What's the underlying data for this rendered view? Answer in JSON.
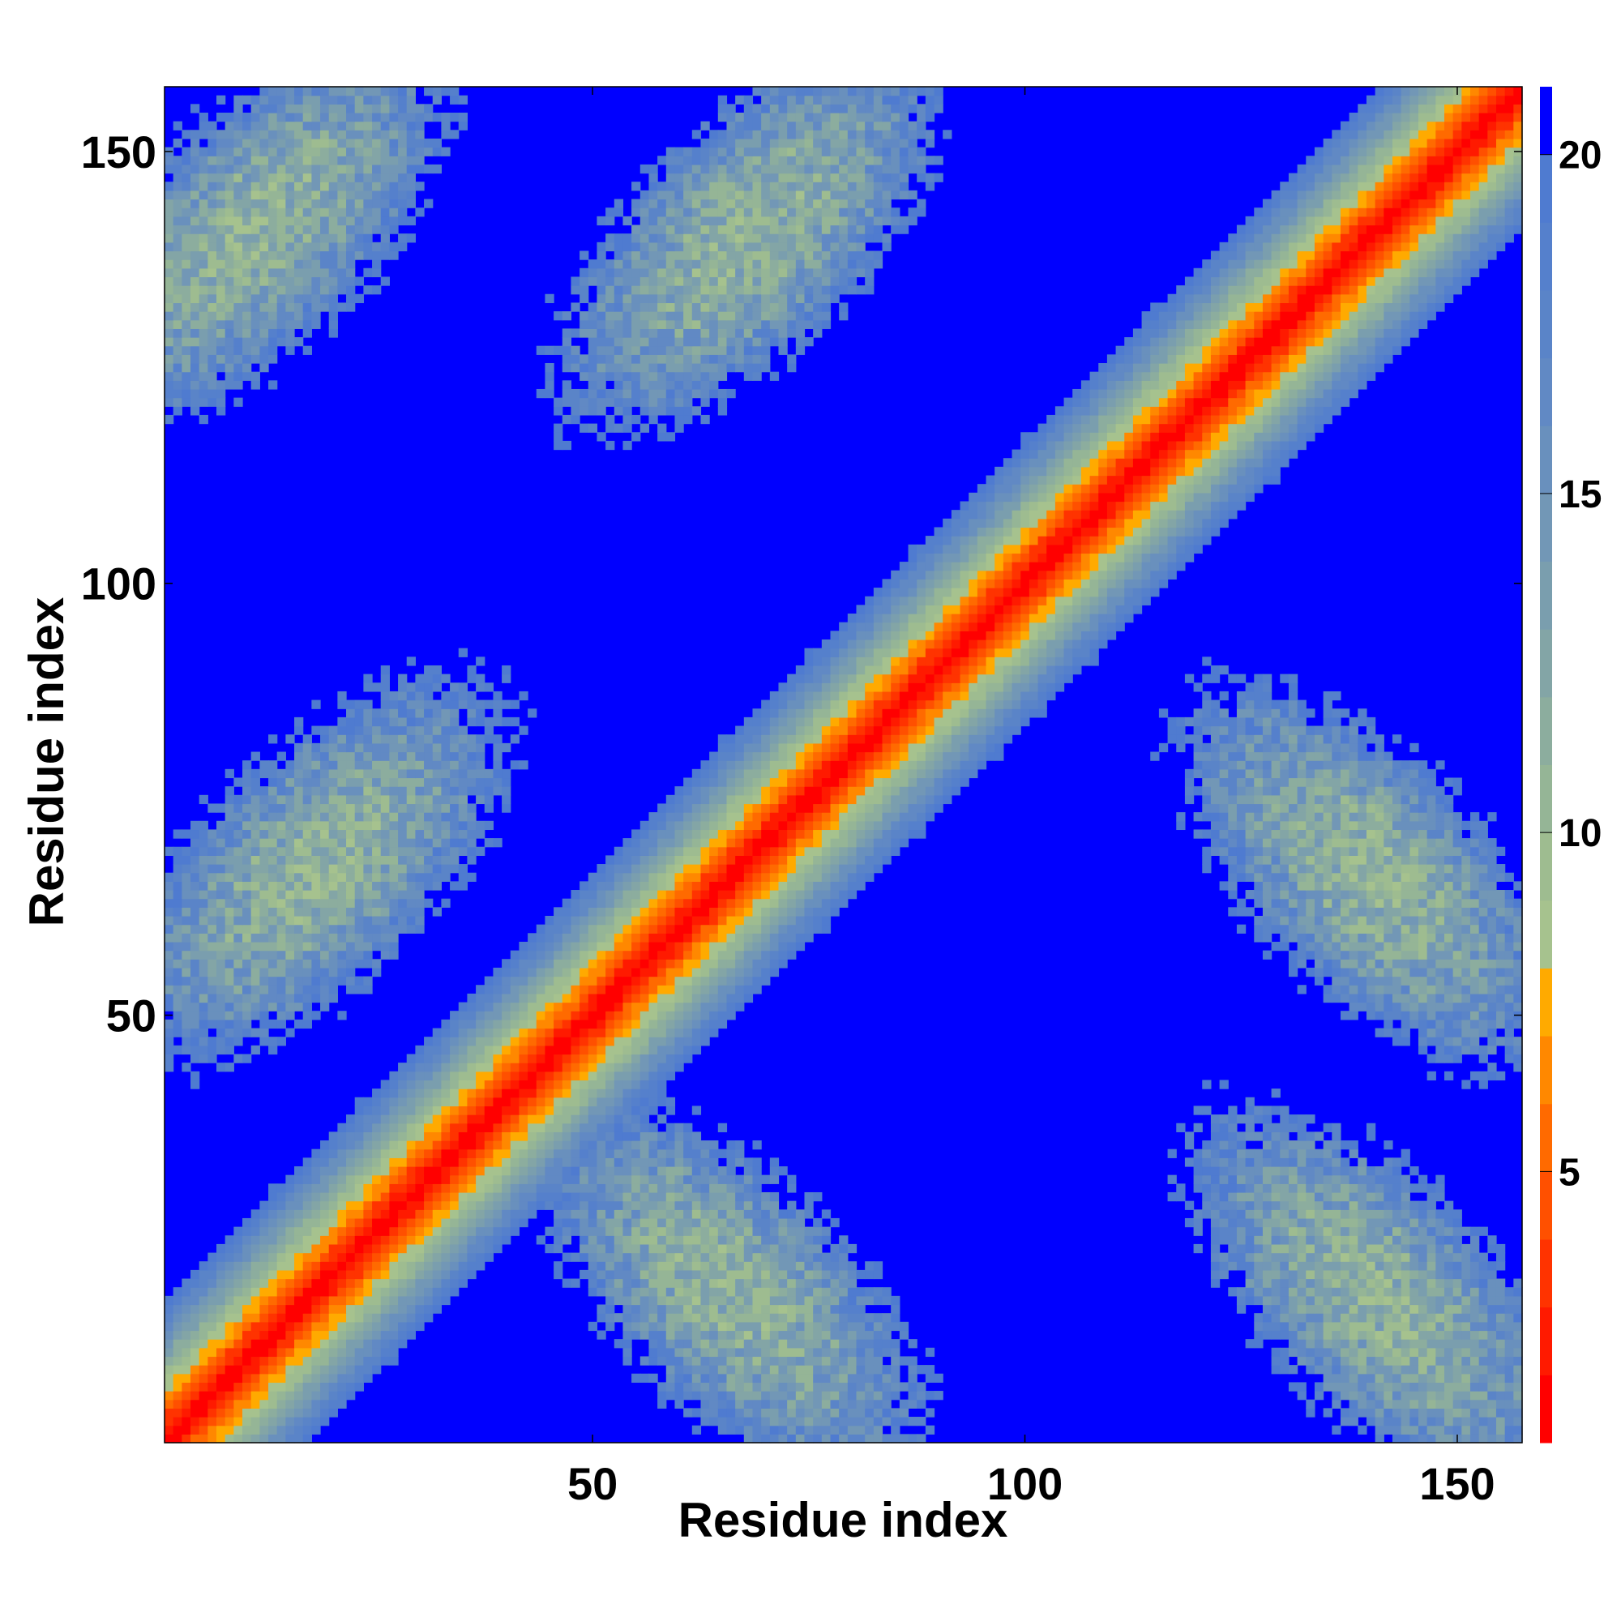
{
  "chart_data": {
    "type": "heatmap",
    "title": "",
    "xlabel": "Residue index",
    "ylabel": "Residue index",
    "n_residues": 157,
    "xlim": [
      1,
      157
    ],
    "ylim": [
      1,
      157
    ],
    "xticks": [
      50,
      100,
      150
    ],
    "yticks": [
      50,
      100,
      150
    ],
    "colorbar": {
      "range": [
        1,
        21
      ],
      "ticks": [
        5,
        10,
        15,
        20
      ],
      "levels": [
        {
          "max": 2,
          "color": "#ff0000"
        },
        {
          "max": 3,
          "color": "#ff1a00"
        },
        {
          "max": 4,
          "color": "#ff3300"
        },
        {
          "max": 5,
          "color": "#ff5000"
        },
        {
          "max": 6,
          "color": "#ff6a00"
        },
        {
          "max": 7,
          "color": "#ff8800"
        },
        {
          "max": 8,
          "color": "#ffaa00"
        },
        {
          "max": 9,
          "color": "#a6c28e"
        },
        {
          "max": 10,
          "color": "#9ebc90"
        },
        {
          "max": 11,
          "color": "#95b596"
        },
        {
          "max": 12,
          "color": "#8cad9e"
        },
        {
          "max": 13,
          "color": "#83a5a6"
        },
        {
          "max": 14,
          "color": "#7a9eae"
        },
        {
          "max": 15,
          "color": "#7297b6"
        },
        {
          "max": 16,
          "color": "#6990bd"
        },
        {
          "max": 17,
          "color": "#6189c4"
        },
        {
          "max": 18,
          "color": "#5a84c8"
        },
        {
          "max": 19,
          "color": "#5580cc"
        },
        {
          "max": 20,
          "color": "#4f7bd0"
        },
        {
          "max": 21,
          "color": "#0000ff"
        }
      ]
    },
    "diagonal_band": {
      "core_value": 1,
      "growth_per_residue": 1.15
    },
    "contact_blocks": [
      {
        "region": "i 1-22, j 125-157",
        "x_center": 11,
        "y_center": 141,
        "min_value": 7
      },
      {
        "region": "i 46-90, j 125-157",
        "x_center": 68,
        "y_center": 140,
        "min_value": 7
      },
      {
        "region": "i 1-38, j 45-87",
        "x_center": 18,
        "y_center": 67,
        "min_value": 7
      },
      {
        "region": "i 43-87, j 1-36",
        "x_center": 66,
        "y_center": 18,
        "min_value": 7
      },
      {
        "region": "i 119-157, j 43-89",
        "x_center": 140,
        "y_center": 66,
        "min_value": 7
      },
      {
        "region": "i 119-157, j 1-37",
        "x_center": 141,
        "y_center": 17,
        "min_value": 7
      }
    ]
  }
}
